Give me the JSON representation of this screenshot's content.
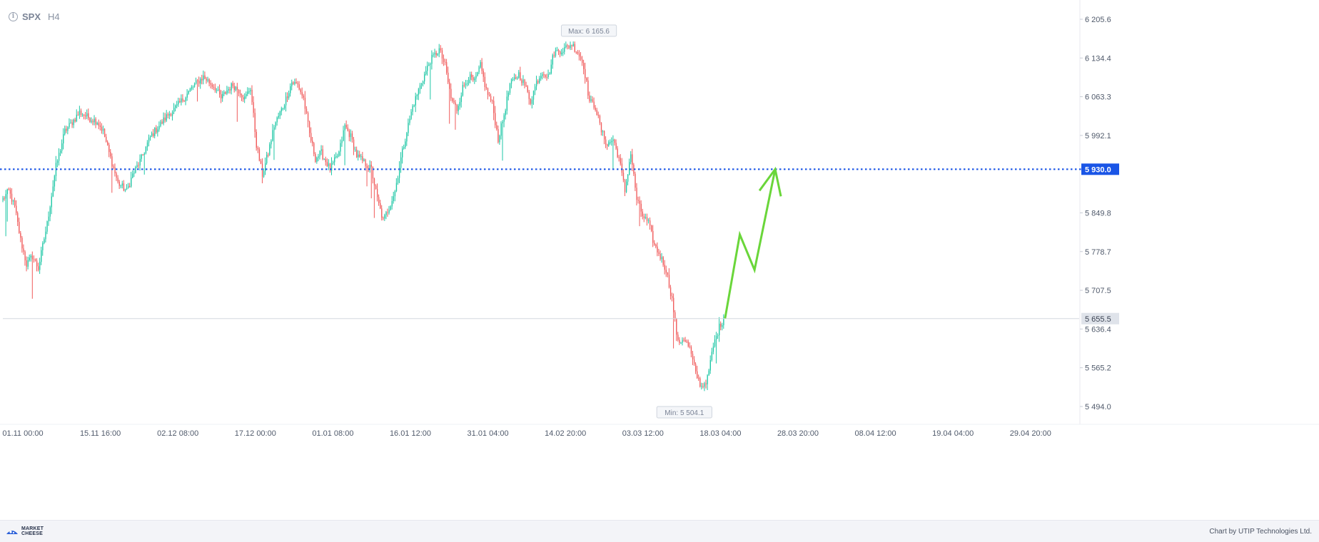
{
  "header": {
    "info_icon": "info-icon",
    "symbol": "SPX",
    "timeframe": "H4"
  },
  "footer": {
    "logo_line1": "MARKET",
    "logo_line2": "CHEESE",
    "credit": "Chart by UTIP Technologies Ltd."
  },
  "colors": {
    "up": "#1fc7a6",
    "down": "#f05b5b",
    "target_line": "#1a55e6",
    "forecast_arrow": "#6ad63a",
    "axis_text": "#505a6b",
    "current_price_bg": "#dfe3ea"
  },
  "chart_data": {
    "type": "candlestick",
    "title": "",
    "symbol": "SPX",
    "timeframe": "H4",
    "y_ticks": [
      6205.6,
      6134.4,
      6063.3,
      5992.1,
      5849.8,
      5778.7,
      5707.5,
      5636.4,
      5565.2,
      5494.0
    ],
    "y_tick_labels": [
      "6 205.6",
      "6 134.4",
      "6 063.3",
      "5 992.1",
      "5 849.8",
      "5 778.7",
      "5 707.5",
      "5 636.4",
      "5 565.2",
      "5 494.0"
    ],
    "x_ticks": [
      "01.11 00:00",
      "15.11 16:00",
      "02.12 08:00",
      "17.12 00:00",
      "01.01 08:00",
      "16.01 12:00",
      "31.01 04:00",
      "14.02 20:00",
      "03.03 12:00",
      "18.03 04:00",
      "28.03 20:00",
      "08.04 12:00",
      "19.04 04:00",
      "29.04 20:00"
    ],
    "max_label": "Max: 6 165.6",
    "max_value": 6165.6,
    "min_label": "Min: 5 504.1",
    "min_value": 5504.1,
    "target_level": 5930.0,
    "target_label": "5 930.0",
    "current_price": 5655.5,
    "current_price_label": "5 655.5",
    "close_path": [
      [
        0,
        5875
      ],
      [
        4,
        5890
      ],
      [
        8,
        5860
      ],
      [
        12,
        5800
      ],
      [
        16,
        5755
      ],
      [
        20,
        5770
      ],
      [
        24,
        5748
      ],
      [
        30,
        5830
      ],
      [
        36,
        5935
      ],
      [
        42,
        6000
      ],
      [
        48,
        6020
      ],
      [
        52,
        6035
      ],
      [
        58,
        6025
      ],
      [
        64,
        6018
      ],
      [
        68,
        6000
      ],
      [
        72,
        5960
      ],
      [
        78,
        5905
      ],
      [
        84,
        5890
      ],
      [
        88,
        5920
      ],
      [
        94,
        5950
      ],
      [
        100,
        5990
      ],
      [
        106,
        6010
      ],
      [
        112,
        6030
      ],
      [
        118,
        6045
      ],
      [
        124,
        6065
      ],
      [
        130,
        6085
      ],
      [
        136,
        6100
      ],
      [
        140,
        6090
      ],
      [
        144,
        6080
      ],
      [
        148,
        6060
      ],
      [
        152,
        6075
      ],
      [
        156,
        6085
      ],
      [
        160,
        6075
      ],
      [
        164,
        6060
      ],
      [
        168,
        6080
      ],
      [
        172,
        5975
      ],
      [
        176,
        5920
      ],
      [
        180,
        5960
      ],
      [
        184,
        6010
      ],
      [
        190,
        6045
      ],
      [
        196,
        6090
      ],
      [
        200,
        6085
      ],
      [
        204,
        6060
      ],
      [
        208,
        5995
      ],
      [
        212,
        5950
      ],
      [
        216,
        5960
      ],
      [
        222,
        5930
      ],
      [
        228,
        5960
      ],
      [
        232,
        6010
      ],
      [
        236,
        5990
      ],
      [
        240,
        5955
      ],
      [
        246,
        5940
      ],
      [
        250,
        5930
      ],
      [
        254,
        5875
      ],
      [
        258,
        5835
      ],
      [
        262,
        5860
      ],
      [
        266,
        5890
      ],
      [
        270,
        5950
      ],
      [
        274,
        6000
      ],
      [
        278,
        6045
      ],
      [
        284,
        6090
      ],
      [
        290,
        6130
      ],
      [
        296,
        6150
      ],
      [
        300,
        6120
      ],
      [
        304,
        6060
      ],
      [
        308,
        6040
      ],
      [
        312,
        6080
      ],
      [
        316,
        6100
      ],
      [
        320,
        6090
      ],
      [
        324,
        6120
      ],
      [
        328,
        6075
      ],
      [
        332,
        6050
      ],
      [
        336,
        5985
      ],
      [
        340,
        6030
      ],
      [
        344,
        6085
      ],
      [
        350,
        6105
      ],
      [
        354,
        6085
      ],
      [
        358,
        6055
      ],
      [
        362,
        6090
      ],
      [
        366,
        6110
      ],
      [
        370,
        6100
      ],
      [
        374,
        6145
      ],
      [
        380,
        6150
      ],
      [
        386,
        6160
      ],
      [
        390,
        6145
      ],
      [
        394,
        6120
      ],
      [
        398,
        6055
      ],
      [
        402,
        6045
      ],
      [
        406,
        6000
      ],
      [
        410,
        5975
      ],
      [
        414,
        5985
      ],
      [
        418,
        5950
      ],
      [
        422,
        5890
      ],
      [
        426,
        5960
      ],
      [
        430,
        5875
      ],
      [
        434,
        5845
      ],
      [
        438,
        5830
      ],
      [
        442,
        5790
      ],
      [
        446,
        5770
      ],
      [
        450,
        5745
      ],
      [
        454,
        5690
      ],
      [
        458,
        5610
      ],
      [
        462,
        5620
      ],
      [
        466,
        5600
      ],
      [
        470,
        5555
      ],
      [
        474,
        5530
      ],
      [
        478,
        5545
      ],
      [
        482,
        5605
      ],
      [
        486,
        5640
      ],
      [
        489,
        5655.5
      ]
    ],
    "forecast_path": [
      [
        490,
        5656
      ],
      [
        500,
        5810
      ],
      [
        510,
        5745
      ],
      [
        524,
        5930
      ]
    ]
  }
}
